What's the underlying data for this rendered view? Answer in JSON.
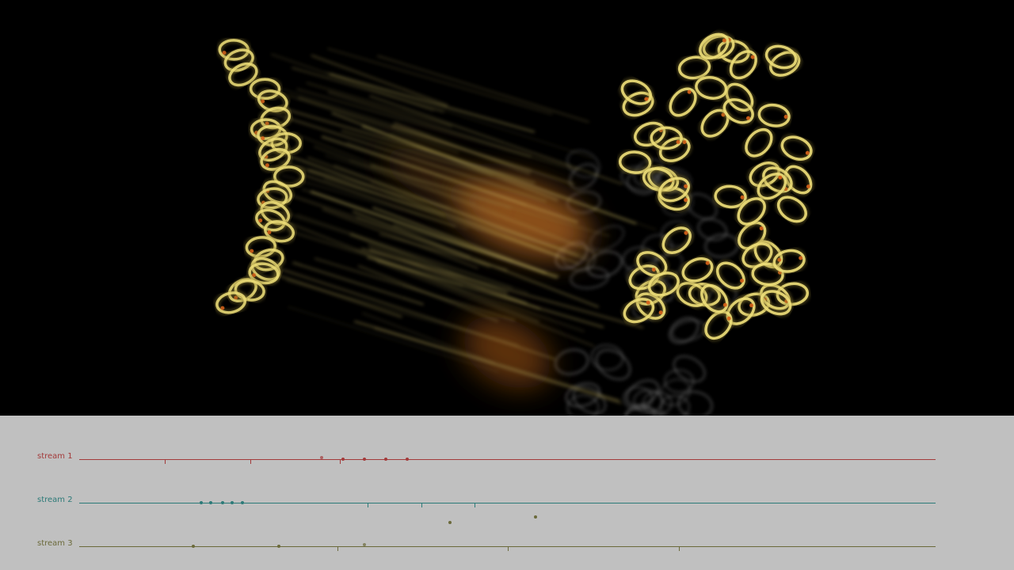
{
  "colors": {
    "background": "#000000",
    "timeline_background": "#c0c0c0",
    "gold": "#e8d46a",
    "orange": "#b86a22",
    "smoke": "#6a6a6a"
  },
  "streams": [
    {
      "label": "stream 1",
      "color": "#a33a3a",
      "ticks": [
        10,
        20,
        30.4
      ],
      "events": [
        28.3,
        30.8,
        33.3,
        35.8,
        38.3
      ],
      "raised_events": [
        28.3
      ]
    },
    {
      "label": "stream 2",
      "color": "#2c7a78",
      "ticks": [
        33.7,
        40.0,
        46.2
      ],
      "events": [
        14.2,
        15.4,
        16.7,
        17.9,
        19.1
      ],
      "raised_events": []
    },
    {
      "label": "stream 3",
      "color": "#6b6a3a",
      "ticks": [
        30.2,
        50.0,
        70.0
      ],
      "events": [
        13.3,
        23.3,
        33.3
      ],
      "raised_events": [
        33.3
      ],
      "floating_events": [
        43.3,
        53.3
      ]
    }
  ]
}
